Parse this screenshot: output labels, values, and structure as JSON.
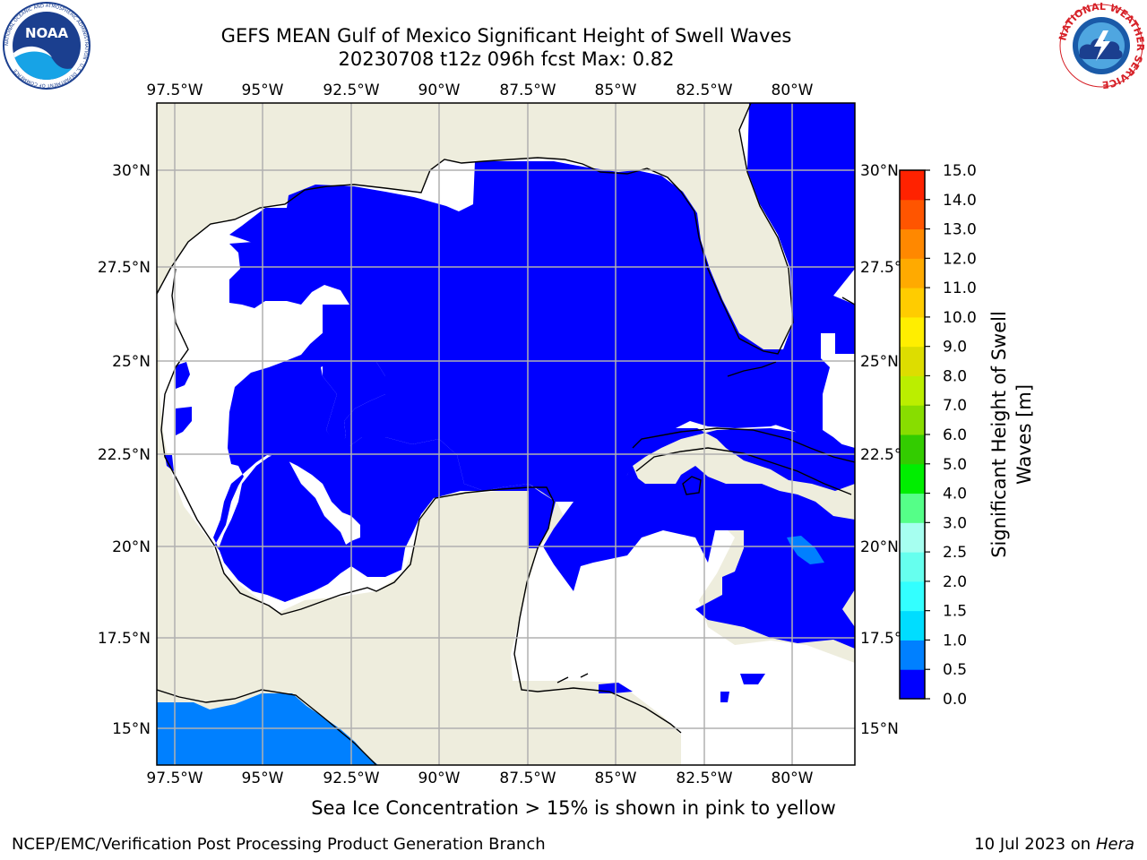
{
  "title": {
    "line1": "GEFS MEAN Gulf of Mexico Significant Height of Swell Waves",
    "line2": "20230708 t12z 096h fcst   Max: 0.82"
  },
  "logos": {
    "noaa": {
      "icon": "noaa-logo",
      "text": "NOAA",
      "ring_text": "NATIONAL OCEANIC AND ATMOSPHERIC ADMINISTRATION · U.S. DEPARTMENT OF COMMERCE"
    },
    "nws": {
      "icon": "nws-logo",
      "ring_text": "NATIONAL WEATHER SERVICE"
    }
  },
  "map": {
    "lon_ticks": [
      "97.5°W",
      "95°W",
      "92.5°W",
      "90°W",
      "87.5°W",
      "85°W",
      "82.5°W",
      "80°W"
    ],
    "lat_ticks": [
      "30°N",
      "27.5°N",
      "25°N",
      "22.5°N",
      "20°N",
      "17.5°N",
      "15°N"
    ],
    "colors": {
      "land": "#eeeddd",
      "sea_low": "#0000ff",
      "sea_mid": "#0080ff",
      "no_data": "#ffffff",
      "grid": "#b0b0b0"
    }
  },
  "colorbar": {
    "label": "Significant Height of Swell Waves [m]",
    "ticks": [
      "0.0",
      "0.5",
      "1.0",
      "1.5",
      "2.0",
      "2.5",
      "3.0",
      "4.0",
      "5.0",
      "6.0",
      "7.0",
      "8.0",
      "9.0",
      "10.0",
      "11.0",
      "12.0",
      "13.0",
      "14.0",
      "15.0"
    ],
    "colors": [
      "#0000ff",
      "#0080ff",
      "#00ddff",
      "#33ffff",
      "#66ffee",
      "#a6fff0",
      "#55ff88",
      "#00ee00",
      "#33cc00",
      "#88dd00",
      "#bbee00",
      "#dddd00",
      "#ffee00",
      "#ffcc00",
      "#ffaa00",
      "#ff8800",
      "#ff5500",
      "#ff2200",
      "#ff0000"
    ]
  },
  "footer": {
    "ice_note": "Sea Ice Concentration > 15% is shown in pink to yellow",
    "left": "NCEP/EMC/Verification Post Processing Product Generation Branch",
    "date": "10 Jul 2023 on ",
    "machine": "Hera"
  }
}
